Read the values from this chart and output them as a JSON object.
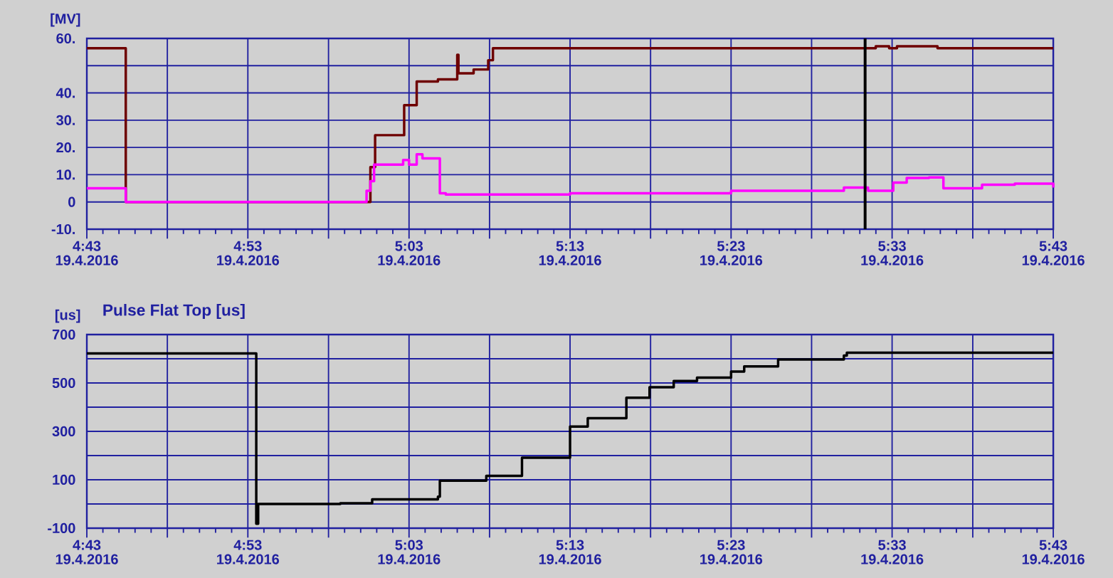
{
  "chart_data": [
    {
      "type": "step",
      "ylabel": "[MV]",
      "xlim": [
        "2016-04-19T04:43",
        "2016-04-19T05:43"
      ],
      "ylim": [
        -10,
        60
      ],
      "xticks": [
        {
          "value": "2016-04-19T04:43",
          "label": "4:43 19.4.2016"
        },
        {
          "value": "2016-04-19T04:48",
          "label": null
        },
        {
          "value": "2016-04-19T04:53",
          "label": "4:53 19.4.2016"
        },
        {
          "value": "2016-04-19T04:58",
          "label": null
        },
        {
          "value": "2016-04-19T05:03",
          "label": "5:03 19.4.2016"
        },
        {
          "value": "2016-04-19T05:08",
          "label": null
        },
        {
          "value": "2016-04-19T05:13",
          "label": "5:13 19.4.2016"
        },
        {
          "value": "2016-04-19T05:18",
          "label": null
        },
        {
          "value": "2016-04-19T05:23",
          "label": "5:23 19.4.2016"
        },
        {
          "value": "2016-04-19T05:28",
          "label": null
        },
        {
          "value": "2016-04-19T05:33",
          "label": "5:33 19.4.2016"
        },
        {
          "value": "2016-04-19T05:38",
          "label": null
        },
        {
          "value": "2016-04-19T05:43",
          "label": "5:43 19.4.2016"
        }
      ],
      "yticks": [
        {
          "value": 60,
          "label": "60."
        },
        {
          "value": 50,
          "label": null
        },
        {
          "value": 40,
          "label": "40."
        },
        {
          "value": 30,
          "label": "30."
        },
        {
          "value": 20,
          "label": "20."
        },
        {
          "value": 10,
          "label": "10."
        },
        0,
        {
          "value": -10,
          "label": "-10."
        }
      ],
      "grid": true,
      "ref_lines": [
        {
          "axis": "x",
          "value": "2016-04-19T05:31:19",
          "color": "#000000"
        }
      ],
      "series": [
        {
          "color": "#6e0000",
          "x": [
            "2016-04-19T04:43:00",
            "2016-04-19T04:45:25",
            "2016-04-19T05:00:36",
            "2016-04-19T05:00:54",
            "2016-04-19T05:02:42",
            "2016-04-19T05:03:29",
            "2016-04-19T05:04:48",
            "2016-04-19T05:06:00",
            "2016-04-19T05:06:04",
            "2016-04-19T05:07:01",
            "2016-04-19T05:07:55",
            "2016-04-19T05:08:13",
            "2016-04-19T05:31:59",
            "2016-04-19T05:32:49",
            "2016-04-19T05:33:18",
            "2016-04-19T05:35:49",
            "2016-04-19T05:43:00"
          ],
          "values": [
            56.4,
            0,
            12.8,
            24.5,
            35.5,
            44.2,
            45,
            54,
            47.2,
            48.6,
            52,
            56.4,
            57.1,
            56.4,
            57.1,
            56.4,
            56.4
          ]
        },
        {
          "color": "#ff00ff",
          "x": [
            "2016-04-19T04:43:00",
            "2016-04-19T04:45:25",
            "2016-04-19T05:00:22",
            "2016-04-19T05:00:36",
            "2016-04-19T05:00:50",
            "2016-04-19T05:02:38",
            "2016-04-19T05:03:00",
            "2016-04-19T05:03:29",
            "2016-04-19T05:03:50",
            "2016-04-19T05:04:55",
            "2016-04-19T05:05:17",
            "2016-04-19T05:13:00",
            "2016-04-19T05:23:00",
            "2016-04-19T05:30:00",
            "2016-04-19T05:31:30",
            "2016-04-19T05:33:04",
            "2016-04-19T05:33:54",
            "2016-04-19T05:35:17",
            "2016-04-19T05:36:11",
            "2016-04-19T05:38:35",
            "2016-04-19T05:40:37",
            "2016-04-19T05:43:00"
          ],
          "values": [
            5,
            0,
            4.1,
            7.6,
            13.7,
            15.4,
            13.7,
            17.5,
            16,
            3.2,
            2.7,
            3.2,
            4.1,
            5.3,
            4.1,
            7.1,
            8.8,
            9,
            5,
            6.3,
            6.7,
            5.3
          ]
        }
      ]
    },
    {
      "type": "step",
      "title": "Pulse Flat Top [us]",
      "ylabel": "[us]",
      "xlim": [
        "2016-04-19T04:43",
        "2016-04-19T05:43"
      ],
      "ylim": [
        -100,
        700
      ],
      "xticks": [
        {
          "value": "2016-04-19T04:43",
          "label": "4:43 19.4.2016"
        },
        {
          "value": "2016-04-19T04:48",
          "label": null
        },
        {
          "value": "2016-04-19T04:53",
          "label": "4:53 19.4.2016"
        },
        {
          "value": "2016-04-19T04:58",
          "label": null
        },
        {
          "value": "2016-04-19T05:03",
          "label": "5:03 19.4.2016"
        },
        {
          "value": "2016-04-19T05:08",
          "label": null
        },
        {
          "value": "2016-04-19T05:13",
          "label": "5:13 19.4.2016"
        },
        {
          "value": "2016-04-19T05:18",
          "label": null
        },
        {
          "value": "2016-04-19T05:23",
          "label": "5:23 19.4.2016"
        },
        {
          "value": "2016-04-19T05:28",
          "label": null
        },
        {
          "value": "2016-04-19T05:33",
          "label": "5:33 19.4.2016"
        },
        {
          "value": "2016-04-19T05:38",
          "label": null
        },
        {
          "value": "2016-04-19T05:43",
          "label": "5:43 19.4.2016"
        }
      ],
      "yticks": [
        700,
        {
          "value": 600,
          "label": null
        },
        500,
        {
          "value": 400,
          "label": null
        },
        300,
        {
          "value": 200,
          "label": null
        },
        100,
        {
          "value": 0,
          "label": null
        },
        -100
      ],
      "grid": true,
      "series": [
        {
          "color": "#000000",
          "x": [
            "2016-04-19T04:43:00",
            "2016-04-19T04:53:31",
            "2016-04-19T04:53:38",
            "2016-04-19T04:58:44",
            "2016-04-19T05:00:43",
            "2016-04-19T05:04:48",
            "2016-04-19T05:04:55",
            "2016-04-19T05:07:48",
            "2016-04-19T05:10:01",
            "2016-04-19T05:13:00",
            "2016-04-19T05:14:06",
            "2016-04-19T05:16:30",
            "2016-04-19T05:17:56",
            "2016-04-19T05:19:26",
            "2016-04-19T05:20:53",
            "2016-04-19T05:23:00",
            "2016-04-19T05:23:49",
            "2016-04-19T05:25:55",
            "2016-04-19T05:30:00",
            "2016-04-19T05:30:11",
            "2016-04-19T05:43:00"
          ],
          "values": [
            622,
            -82,
            0,
            3,
            19,
            30,
            96,
            116,
            191,
            320,
            354,
            439,
            482,
            508,
            522,
            547,
            568,
            597,
            613,
            625,
            625
          ]
        }
      ]
    }
  ]
}
